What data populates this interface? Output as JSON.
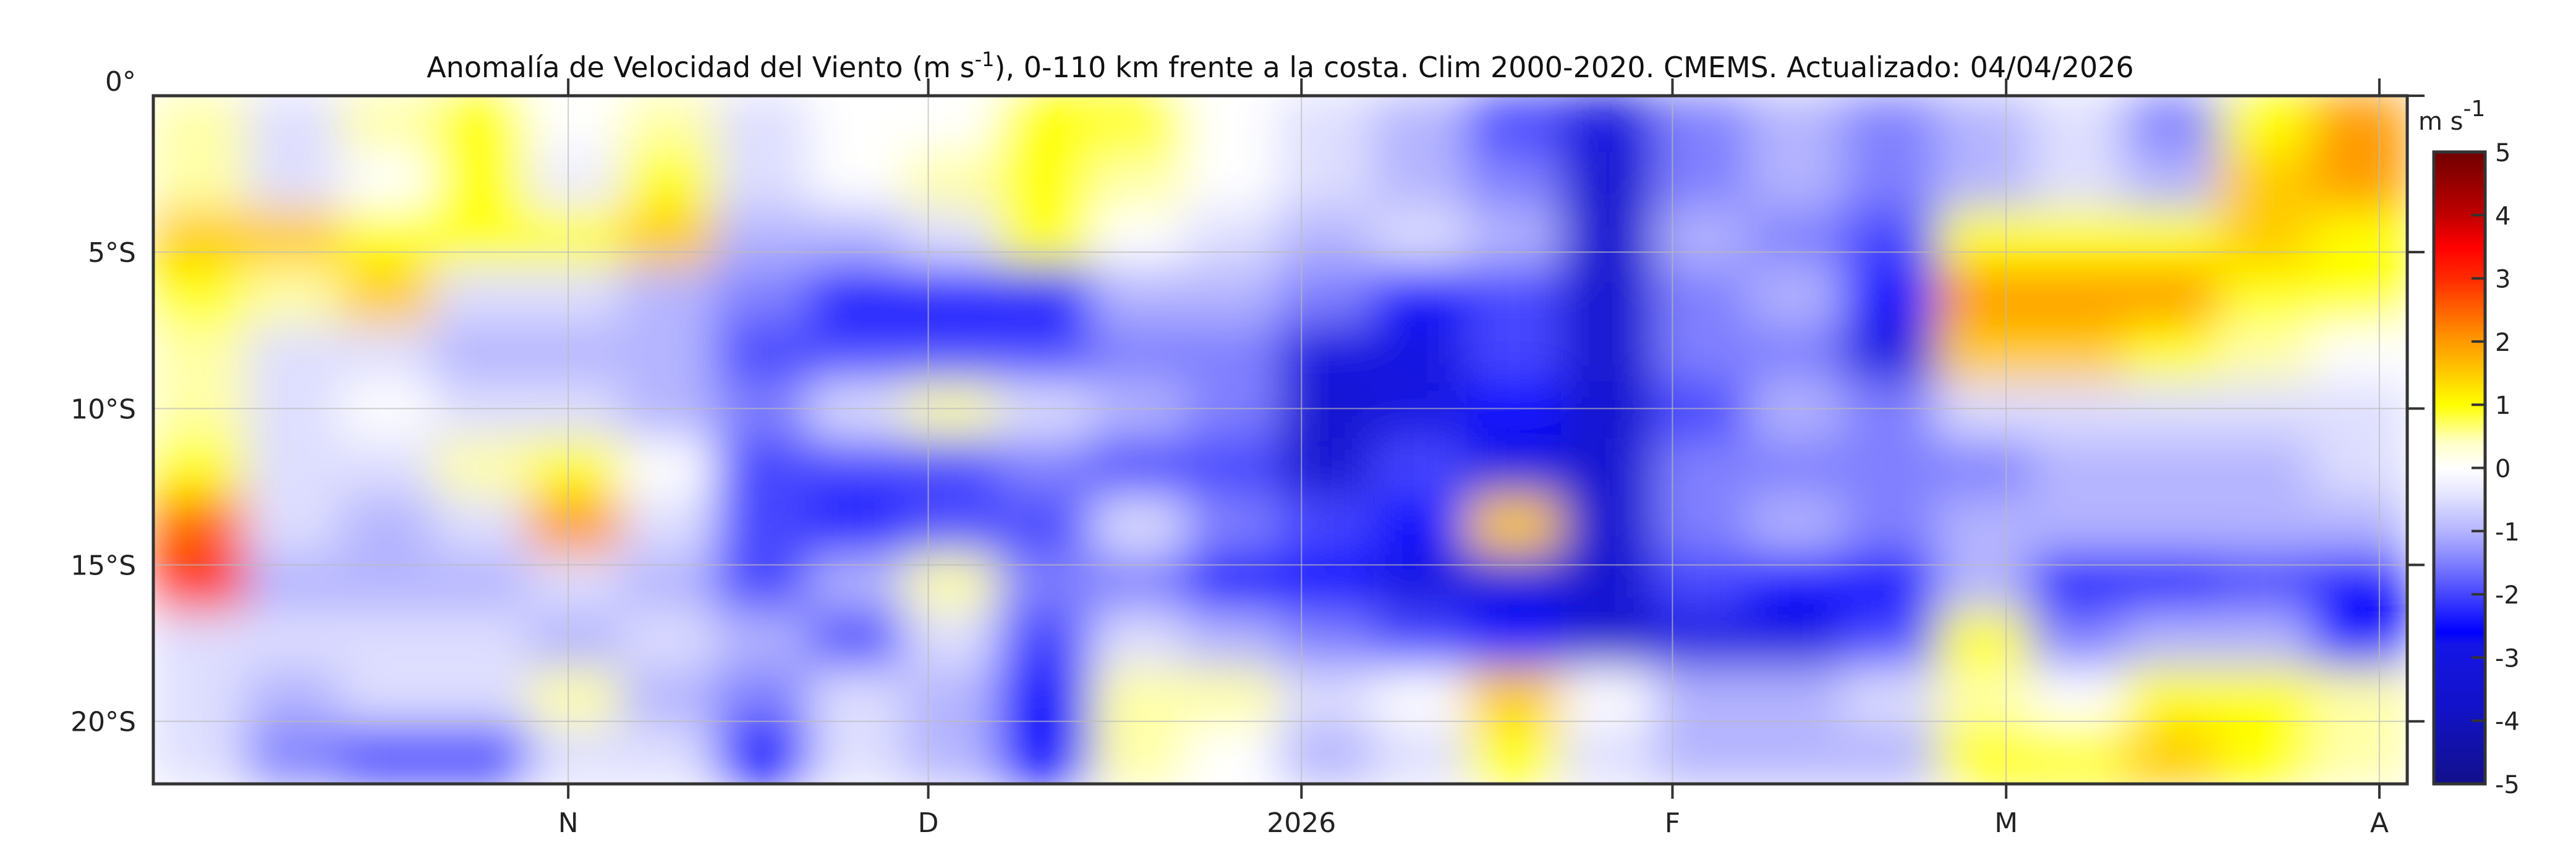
{
  "chart_data": {
    "type": "heatmap",
    "title": {
      "pre": "Anomalía de Velocidad del Viento (m s",
      "sup": "-1",
      "post": "), 0-110 km frente a la costa. Clim 2000-2020. CMEMS. Actualizado: 04/04/2026"
    },
    "xlabel": "",
    "ylabel": "",
    "x_ticks": [
      {
        "label": "N",
        "frac": 0.189
      },
      {
        "label": "D",
        "frac": 0.353
      },
      {
        "label": "2026",
        "frac": 0.523
      },
      {
        "label": "F",
        "frac": 0.692
      },
      {
        "label": "M",
        "frac": 0.844
      },
      {
        "label": "A",
        "frac": 1.014
      }
    ],
    "x_range_note": "time, roughly Oct 2025 to Apr 2026",
    "y_ticks": [
      {
        "label": "0°",
        "lat": 0
      },
      {
        "label": "5°S",
        "lat": 5
      },
      {
        "label": "10°S",
        "lat": 10
      },
      {
        "label": "15°S",
        "lat": 15
      },
      {
        "label": "20°S",
        "lat": 20
      }
    ],
    "ylim": [
      0,
      22
    ],
    "grid": true,
    "colorbar": {
      "unit_base": "m s",
      "unit_sup": "-1",
      "range": [
        -5,
        5
      ],
      "ticks": [
        "5",
        "4",
        "3",
        "2",
        "1",
        "0",
        "-1",
        "-2",
        "-3",
        "-4",
        "-5"
      ]
    },
    "grid_values": [
      [
        0.5,
        -0.5,
        0.5,
        1,
        0,
        0.5,
        -0.5,
        0,
        0,
        1,
        1,
        0,
        -0.5,
        -1,
        -2,
        -3,
        -1.5,
        -1,
        -1.5,
        -1,
        -0.5,
        -1.5,
        1,
        2
      ],
      [
        0.5,
        -0.5,
        0,
        1,
        -0.3,
        1,
        -0.5,
        0,
        0.5,
        1,
        0.5,
        0,
        -0.5,
        -1,
        -1.5,
        -3.5,
        -1.5,
        -1,
        -1.5,
        -1,
        -0.5,
        -1,
        1.5,
        2
      ],
      [
        1.5,
        1.5,
        1,
        1,
        1,
        1.5,
        -1,
        -1,
        -0.5,
        1,
        0,
        -0.5,
        -1,
        -0.5,
        -1,
        -3.5,
        -1,
        -1.5,
        -2,
        1,
        1,
        1,
        1.5,
        1
      ],
      [
        1,
        0.5,
        1.5,
        -0.5,
        -0.5,
        -1,
        -1.5,
        -2.5,
        -2.5,
        -2.5,
        -1,
        -1,
        -1.5,
        -2.5,
        -2,
        -3.5,
        -1.5,
        -1,
        -2.5,
        2,
        2,
        2,
        1,
        1
      ],
      [
        0.5,
        -0.5,
        -0.5,
        -1,
        -1,
        -1,
        -2,
        -2,
        -2,
        -2,
        -1.5,
        -1.5,
        -3,
        -3,
        -2,
        -3.5,
        -1.5,
        -1.5,
        -3,
        1.5,
        1.5,
        1,
        0.5,
        0
      ],
      [
        0.5,
        -0.5,
        0,
        -0.5,
        -0.5,
        -1,
        -1.5,
        -0.5,
        0.5,
        -0.5,
        -1,
        -1.5,
        -3.5,
        -3,
        -2.5,
        -3.5,
        -2,
        -1,
        -1.5,
        -0.5,
        -0.5,
        -0.5,
        -0.5,
        -0.5
      ],
      [
        1,
        -0.5,
        -0.5,
        0.5,
        1,
        0,
        -2,
        -2,
        -2,
        -1.5,
        -2,
        -2,
        -3.5,
        -2,
        -3,
        -3.5,
        -1.5,
        -1.5,
        -1.5,
        -1.5,
        -1,
        -1,
        -1,
        -0.5
      ],
      [
        2.5,
        -0.5,
        -1,
        -0.5,
        2,
        -0.5,
        -2,
        -2.5,
        -2,
        -2,
        -0.5,
        -1.5,
        -2,
        -2.5,
        1.5,
        -3.5,
        -1.5,
        -1,
        -1.5,
        -1,
        -1,
        -1,
        -1,
        -1
      ],
      [
        3,
        -1,
        -1,
        -1,
        -0.5,
        -1,
        -2,
        -1,
        0.5,
        -1.5,
        -1.5,
        -2.5,
        -2.5,
        -3,
        -3,
        -3.5,
        -2,
        -2.5,
        -2.5,
        -1,
        -2.5,
        -2.5,
        -2,
        -2.5
      ],
      [
        -0.5,
        -0.5,
        -0.5,
        -0.5,
        -1,
        -0.5,
        -1,
        -2,
        -0.5,
        -2,
        -0.5,
        -1,
        -1.5,
        -2,
        -2.5,
        -3.5,
        -3,
        -3,
        -2,
        1,
        -1.5,
        -1,
        -1,
        -2.5
      ],
      [
        -0.5,
        -1,
        -0.5,
        -0.5,
        0.5,
        -1,
        -1.5,
        -0.5,
        -1,
        -2.5,
        0.5,
        0.5,
        -0.5,
        0,
        1.5,
        0,
        -1,
        -1,
        -0.5,
        0.5,
        0,
        1,
        1,
        0.5
      ],
      [
        -0.5,
        -1.5,
        -2,
        -2,
        -0.5,
        -0.5,
        -2.5,
        -0.5,
        -1,
        -2.5,
        0.5,
        0,
        -1,
        -0.5,
        1,
        -0.5,
        -1,
        -1,
        -1,
        1,
        1,
        1.5,
        1,
        0.5
      ]
    ],
    "colors": {
      "stops": [
        [
          -5,
          "#12108a"
        ],
        [
          -3.8,
          "#1212c8"
        ],
        [
          -2.8,
          "#1515e6"
        ],
        [
          -2.6,
          "#0000ff"
        ],
        [
          -2,
          "#4646ff"
        ],
        [
          -1.5,
          "#8080ff"
        ],
        [
          -1,
          "#b4b4ff"
        ],
        [
          -0.4,
          "#e6e6ff"
        ],
        [
          0,
          "#ffffff"
        ],
        [
          0.4,
          "#ffffc8"
        ],
        [
          1,
          "#ffff00"
        ],
        [
          1.6,
          "#ffc000"
        ],
        [
          2,
          "#ff9a00"
        ],
        [
          3,
          "#ff2a00"
        ],
        [
          3.5,
          "#ff0000"
        ],
        [
          4,
          "#c00000"
        ],
        [
          5,
          "#700000"
        ]
      ]
    }
  }
}
